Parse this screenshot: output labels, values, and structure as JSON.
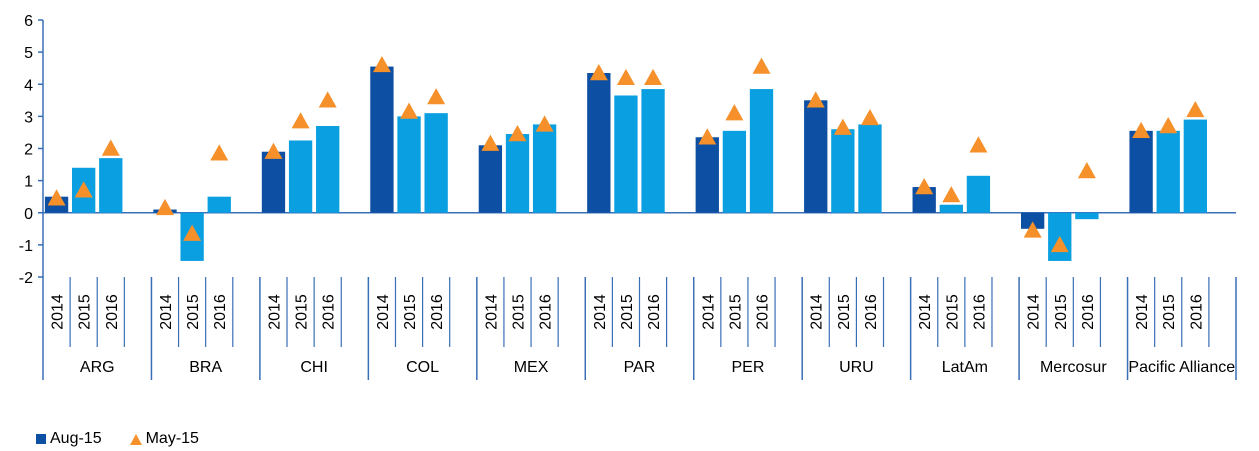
{
  "chart_data": {
    "type": "bar",
    "ylim": [
      -2,
      6
    ],
    "yticks": [
      "6",
      "5",
      "4",
      "3",
      "2",
      "1",
      "0",
      "-1",
      "-2"
    ],
    "grid": false,
    "legend_placement": "bottom-left",
    "groups": [
      {
        "label": "ARG",
        "years": [
          "2014",
          "2015",
          "2016"
        ]
      },
      {
        "label": "BRA",
        "years": [
          "2014",
          "2015",
          "2016"
        ]
      },
      {
        "label": "CHI",
        "years": [
          "2014",
          "2015",
          "2016"
        ]
      },
      {
        "label": "COL",
        "years": [
          "2014",
          "2015",
          "2016"
        ]
      },
      {
        "label": "MEX",
        "years": [
          "2014",
          "2015",
          "2016"
        ]
      },
      {
        "label": "PAR",
        "years": [
          "2014",
          "2015",
          "2016"
        ]
      },
      {
        "label": "PER",
        "years": [
          "2014",
          "2015",
          "2016"
        ]
      },
      {
        "label": "URU",
        "years": [
          "2014",
          "2015",
          "2016"
        ]
      },
      {
        "label": "LatAm",
        "years": [
          "2014",
          "2015",
          "2016"
        ]
      },
      {
        "label": "Mercosur",
        "years": [
          "2014",
          "2015",
          "2016"
        ]
      },
      {
        "label": "Pacific Alliance",
        "years": [
          "2014",
          "2015",
          "2016"
        ]
      }
    ],
    "series": [
      {
        "name": "Aug-15",
        "kind": "bar",
        "values": [
          [
            0.5,
            1.4,
            1.7
          ],
          [
            0.1,
            -1.5,
            0.5
          ],
          [
            1.9,
            2.25,
            2.7
          ],
          [
            4.55,
            3.0,
            3.1
          ],
          [
            2.1,
            2.45,
            2.75
          ],
          [
            4.35,
            3.65,
            3.85
          ],
          [
            2.35,
            2.55,
            3.85
          ],
          [
            3.5,
            2.6,
            2.75
          ],
          [
            0.8,
            0.25,
            1.15
          ],
          [
            -0.5,
            -1.5,
            -0.2
          ],
          [
            2.55,
            2.55,
            2.9
          ]
        ]
      },
      {
        "name": "May-15",
        "kind": "triangle",
        "values": [
          [
            0.45,
            0.7,
            2.0
          ],
          [
            0.15,
            -0.65,
            1.85
          ],
          [
            1.9,
            2.85,
            3.5
          ],
          [
            4.6,
            3.15,
            3.6
          ],
          [
            2.15,
            2.45,
            2.75
          ],
          [
            4.35,
            4.2,
            4.2
          ],
          [
            2.35,
            3.1,
            4.55
          ],
          [
            3.5,
            2.65,
            2.95
          ],
          [
            0.8,
            0.55,
            2.1
          ],
          [
            -0.55,
            -1.0,
            1.3
          ],
          [
            2.55,
            2.7,
            3.2
          ]
        ]
      }
    ],
    "colors": {
      "bar_2014": "#0d4fa3",
      "bar_other": "#0a9fe0",
      "triangle": "#f5902a",
      "axis": "#3a6fb7"
    }
  }
}
